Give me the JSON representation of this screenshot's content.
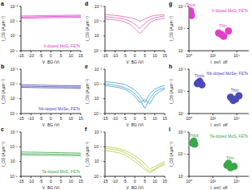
{
  "chart_data": [
    {
      "title": "a",
      "type": "line",
      "log": "y",
      "annotation": "V-doped MoS₂ FETs",
      "color": "#e040c8",
      "xlabel": "V_BG (V)",
      "ylabel": "I_DS (A μm⁻¹)",
      "xlim": [
        -15,
        15
      ],
      "xticks": [
        -15,
        -10,
        -5,
        0,
        5,
        10,
        15
      ],
      "ylim": [
        1e-09,
        0.001
      ],
      "yticks": [
        {
          "value": 1e-09,
          "label": "10⁻⁹"
        },
        {
          "value": 1e-07,
          "label": "10⁻⁷"
        },
        {
          "value": 1e-05,
          "label": "10⁻⁵"
        },
        {
          "value": 0.001,
          "label": "10⁻³"
        }
      ],
      "x": [
        -15,
        -10,
        -5,
        0,
        5,
        10,
        15
      ],
      "series": [
        {
          "values": [
            5e-05,
            5.2e-05,
            5.5e-05,
            5.8e-05,
            6e-05,
            6.2e-05,
            6.5e-05
          ]
        },
        {
          "values": [
            3.5e-05,
            3.7e-05,
            4e-05,
            4.2e-05,
            4.4e-05,
            4.6e-05,
            4.8e-05
          ]
        },
        {
          "values": [
            2.5e-05,
            2.6e-05,
            2.8e-05,
            3e-05,
            3.1e-05,
            3.3e-05,
            3.4e-05
          ]
        }
      ]
    },
    {
      "title": "b",
      "type": "line",
      "log": "y",
      "annotation": "Nb-doped MoSe₂ FETs",
      "color": "#4a4ab8",
      "xlabel": "V_BG (V)",
      "ylabel": "I_DS (A μm⁻¹)",
      "xlim": [
        -15,
        15
      ],
      "xticks": [
        -15,
        -10,
        -5,
        0,
        5,
        10,
        15
      ],
      "ylim": [
        1e-09,
        0.001
      ],
      "yticks": [
        {
          "value": 1e-09,
          "label": "10⁻⁹"
        },
        {
          "value": 1e-07,
          "label": "10⁻⁷"
        },
        {
          "value": 1e-05,
          "label": "10⁻⁵"
        },
        {
          "value": 0.001,
          "label": "10⁻³"
        }
      ],
      "x": [
        -15,
        -10,
        -5,
        0,
        5,
        10,
        15
      ],
      "series": [
        {
          "values": [
            8e-06,
            7.5e-06,
            7e-06,
            6.5e-06,
            6.2e-06,
            6e-06,
            5.8e-06
          ]
        },
        {
          "values": [
            5e-06,
            4.8e-06,
            4.5e-06,
            4.3e-06,
            4.1e-06,
            4e-06,
            3.9e-06
          ]
        },
        {
          "values": [
            3.5e-06,
            3.3e-06,
            3.1e-06,
            3e-06,
            2.9e-06,
            2.8e-06,
            2.7e-06
          ]
        }
      ]
    },
    {
      "title": "c",
      "type": "line",
      "log": "y",
      "annotation": "Ta-doped MoS₂ FETs",
      "color": "#3aa84a",
      "xlabel": "V_BG (V)",
      "ylabel": "I_DS (A μm⁻¹)",
      "xlim": [
        -15,
        15
      ],
      "xticks": [
        -15,
        -10,
        -5,
        0,
        5,
        10,
        15
      ],
      "ylim": [
        1e-09,
        0.001
      ],
      "yticks": [
        {
          "value": 1e-09,
          "label": "10⁻⁹"
        },
        {
          "value": 1e-07,
          "label": "10⁻⁷"
        },
        {
          "value": 1e-05,
          "label": "10⁻⁵"
        },
        {
          "value": 0.001,
          "label": "10⁻³"
        }
      ],
      "x": [
        -15,
        -10,
        -5,
        0,
        5,
        10,
        15
      ],
      "series": [
        {
          "values": [
            2e-06,
            1.9e-06,
            1.8e-06,
            1.7e-06,
            1.6e-06,
            1.5e-06,
            1.4e-06
          ]
        },
        {
          "values": [
            1.2e-06,
            1.15e-06,
            1.1e-06,
            1.05e-06,
            1e-06,
            9.5e-07,
            9e-07
          ]
        },
        {
          "values": [
            8e-07,
            7.6e-07,
            7.2e-07,
            6.9e-07,
            6.6e-07,
            6.3e-07,
            6e-07
          ]
        }
      ]
    },
    {
      "title": "d",
      "type": "line",
      "log": "y",
      "color": "#e062a8",
      "xlabel": "V_BG (V)",
      "ylabel": "I_DS (A μm⁻¹)",
      "xlim": [
        -15,
        15
      ],
      "xticks": [
        -15,
        -10,
        -5,
        0,
        5,
        10,
        15
      ],
      "ylim": [
        1e-09,
        0.001
      ],
      "yticks": [
        {
          "value": 1e-09,
          "label": "10⁻⁹"
        },
        {
          "value": 1e-07,
          "label": "10⁻⁷"
        },
        {
          "value": 1e-05,
          "label": "10⁻⁵"
        },
        {
          "value": 0.001,
          "label": "10⁻³"
        }
      ],
      "x": [
        -15,
        -12.5,
        -10,
        -7.5,
        -5,
        -2.5,
        0,
        2.5,
        5,
        7.5,
        10,
        12.5,
        15
      ],
      "series": [
        {
          "values": [
            8e-05,
            7e-05,
            6e-05,
            5e-05,
            4e-05,
            3e-05,
            2e-05,
            1e-05,
            2e-05,
            4e-05,
            6e-05,
            7e-05,
            8e-05
          ]
        },
        {
          "values": [
            4e-05,
            3.5e-05,
            3e-05,
            2.5e-05,
            1.8e-05,
            1e-05,
            4e-06,
            1e-06,
            5e-06,
            1.5e-05,
            3e-05,
            4e-05,
            5e-05
          ]
        },
        {
          "values": [
            2e-05,
            1.8e-05,
            1.5e-05,
            1.2e-05,
            8e-06,
            4e-06,
            1e-06,
            2e-07,
            1e-06,
            6e-06,
            1.5e-05,
            2e-05,
            2.5e-05
          ]
        }
      ]
    },
    {
      "title": "e",
      "type": "line",
      "log": "y",
      "color": "#3a9ad8",
      "xlabel": "V_BG (V)",
      "ylabel": "I_DS (A μm⁻¹)",
      "xlim": [
        -15,
        15
      ],
      "xticks": [
        -15,
        -10,
        -5,
        0,
        5,
        10,
        15
      ],
      "ylim": [
        1e-09,
        0.001
      ],
      "yticks": [
        {
          "value": 1e-09,
          "label": "10⁻⁹"
        },
        {
          "value": 1e-07,
          "label": "10⁻⁷"
        },
        {
          "value": 1e-05,
          "label": "10⁻⁵"
        },
        {
          "value": 0.001,
          "label": "10⁻³"
        }
      ],
      "x": [
        -15,
        -12.5,
        -10,
        -7.5,
        -5,
        -2.5,
        0,
        2.5,
        5,
        7.5,
        10,
        12.5,
        15
      ],
      "series": [
        {
          "values": [
            2e-05,
            1.8e-05,
            1.5e-05,
            1.2e-05,
            8e-06,
            4e-06,
            1.5e-06,
            3e-07,
            3e-08,
            5e-07,
            2e-06,
            4e-06,
            6e-06
          ]
        },
        {
          "values": [
            1e-05,
            9e-06,
            7e-06,
            5e-06,
            3e-06,
            1.5e-06,
            5e-07,
            8e-08,
            5e-09,
            1e-07,
            8e-07,
            2e-06,
            3e-06
          ]
        },
        {
          "values": [
            6e-06,
            5e-06,
            4e-06,
            3e-06,
            1.8e-06,
            8e-07,
            2e-07,
            3e-08,
            8e-08,
            2e-08,
            3e-07,
            1e-06,
            2e-06
          ]
        }
      ]
    },
    {
      "title": "f",
      "type": "line",
      "log": "y",
      "color": "#b4c83a",
      "xlabel": "V_BG (V)",
      "ylabel": "I_DS (A μm⁻¹)",
      "xlim": [
        -15,
        15
      ],
      "xticks": [
        -15,
        -10,
        -5,
        0,
        5,
        10,
        15
      ],
      "ylim": [
        1e-09,
        0.001
      ],
      "yticks": [
        {
          "value": 1e-09,
          "label": "10⁻⁹"
        },
        {
          "value": 1e-07,
          "label": "10⁻⁷"
        },
        {
          "value": 1e-05,
          "label": "10⁻⁵"
        },
        {
          "value": 0.001,
          "label": "10⁻³"
        }
      ],
      "x": [
        -15,
        -12.5,
        -10,
        -7.5,
        -5,
        -2.5,
        0,
        2.5,
        5,
        7.5,
        10,
        12.5,
        15
      ],
      "series": [
        {
          "values": [
            1e-05,
            9e-06,
            7e-06,
            5e-06,
            3e-06,
            1.5e-06,
            6e-07,
            2e-07,
            5e-08,
            1e-08,
            2e-08,
            5e-08,
            1e-07
          ]
        },
        {
          "values": [
            6e-06,
            5e-06,
            4e-06,
            3e-06,
            1.6e-06,
            7e-07,
            2.5e-07,
            7e-08,
            1.5e-08,
            5e-09,
            1e-08,
            3e-08,
            6e-08
          ]
        },
        {
          "values": [
            3e-06,
            2.5e-06,
            2e-06,
            1.4e-06,
            8e-07,
            3e-07,
            1e-07,
            3e-08,
            8e-09,
            3e-09,
            8e-09,
            2e-08,
            4e-08
          ]
        }
      ]
    },
    {
      "title": "g",
      "type": "scatter",
      "log": true,
      "marker": "circle",
      "annotation": "V-doped MoS₂ FETs",
      "color": "#e040c8",
      "xlabel": "I_on/I_off",
      "ylabel": "I_DS (A μm⁻¹)",
      "xlim": [
        1,
        100000
      ],
      "xticks": [
        {
          "value": 1,
          "label": "10⁰"
        },
        {
          "value": 100,
          "label": "10²"
        },
        {
          "value": 10000,
          "label": "10⁴"
        }
      ],
      "ylim": [
        1e-07,
        0.001
      ],
      "yticks": [
        {
          "value": 1e-07,
          "label": "10⁻⁷"
        },
        {
          "value": 1e-05,
          "label": "10⁻⁵"
        },
        {
          "value": 0.001,
          "label": "10⁻³"
        }
      ],
      "series": [
        {
          "name": "Thick",
          "x": [
            1.2,
            1.4,
            1.6,
            1.3
          ],
          "values": [
            0.0002,
            0.0003,
            0.00015,
            0.0004
          ]
        },
        {
          "name": "Thin",
          "x": [
            300,
            800,
            2000,
            500
          ],
          "values": [
            4e-06,
            2e-06,
            6e-06,
            3e-06
          ]
        }
      ]
    },
    {
      "title": "h",
      "type": "scatter",
      "log": true,
      "marker": "circle",
      "annotation": "Nb-doped MoSe₂ FETs",
      "color": "#4a4ab8",
      "xlabel": "I_on/I_off",
      "ylabel": "I_DS (A μm⁻¹)",
      "xlim": [
        1,
        100000
      ],
      "xticks": [
        {
          "value": 1,
          "label": "10⁰"
        },
        {
          "value": 100,
          "label": "10²"
        },
        {
          "value": 10000,
          "label": "10⁴"
        }
      ],
      "ylim": [
        1e-07,
        0.001
      ],
      "yticks": [
        {
          "value": 1e-07,
          "label": "10⁻⁷"
        },
        {
          "value": 1e-05,
          "label": "10⁻⁵"
        },
        {
          "value": 0.001,
          "label": "10⁻³"
        }
      ],
      "series": [
        {
          "name": "Thick",
          "x": [
            5,
            8,
            12,
            6
          ],
          "values": [
            5e-05,
            8e-05,
            4e-05,
            6e-05
          ]
        },
        {
          "name": "Thin",
          "x": [
            3000,
            8000,
            15000,
            5000
          ],
          "values": [
            3e-06,
            2e-06,
            4e-06,
            1.5e-06
          ]
        }
      ]
    },
    {
      "title": "i",
      "type": "scatter",
      "log": true,
      "marker": "circle",
      "annotation": "Ta-doped MoS₂ FETs",
      "color": "#3aa84a",
      "xlabel": "I_on/I_off",
      "ylabel": "I_DS (A μm⁻¹)",
      "xlim": [
        1,
        100000
      ],
      "xticks": [
        {
          "value": 1,
          "label": "10⁰"
        },
        {
          "value": 100,
          "label": "10²"
        },
        {
          "value": 10000,
          "label": "10⁴"
        }
      ],
      "ylim": [
        1e-07,
        0.001
      ],
      "yticks": [
        {
          "value": 1e-07,
          "label": "10⁻⁷"
        },
        {
          "value": 1e-05,
          "label": "10⁻⁵"
        },
        {
          "value": 0.001,
          "label": "10⁻³"
        }
      ],
      "series": [
        {
          "name": "Thick",
          "x": [
            2,
            3,
            2.5
          ],
          "values": [
            0.0001,
            8e-05,
            0.00015
          ]
        },
        {
          "name": "Thin",
          "x": [
            1500,
            3000,
            6000,
            2000
          ],
          "values": [
            1e-06,
            6e-07,
            8e-07,
            1.5e-06
          ]
        }
      ]
    }
  ]
}
